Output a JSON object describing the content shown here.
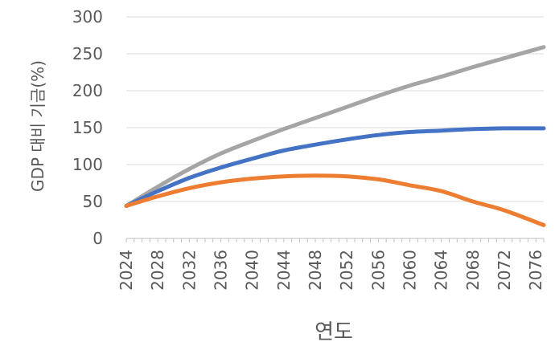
{
  "chart_data": {
    "type": "line",
    "title": "",
    "xlabel": "연도",
    "ylabel": "GDP 대비 기금(%)",
    "ylim": [
      0,
      300
    ],
    "yticks": [
      0,
      50,
      100,
      150,
      200,
      250,
      300
    ],
    "xlim": [
      2024,
      2077
    ],
    "xticks": [
      2024,
      2028,
      2032,
      2036,
      2040,
      2044,
      2048,
      2052,
      2056,
      2060,
      2064,
      2068,
      2072,
      2076
    ],
    "grid": "horizontal",
    "legend": "none",
    "series": [
      {
        "color": "#a5a5a5",
        "x": [
          2024,
          2028,
          2032,
          2036,
          2040,
          2044,
          2048,
          2052,
          2056,
          2060,
          2064,
          2068,
          2072,
          2077
        ],
        "values": [
          44,
          70,
          94,
          115,
          132,
          148,
          163,
          178,
          193,
          207,
          219,
          232,
          244,
          259
        ]
      },
      {
        "color": "#4472c4",
        "x": [
          2024,
          2028,
          2032,
          2036,
          2040,
          2044,
          2048,
          2052,
          2056,
          2060,
          2064,
          2068,
          2072,
          2077
        ],
        "values": [
          44,
          64,
          82,
          96,
          108,
          119,
          127,
          134,
          140,
          144,
          146,
          148,
          149,
          149
        ]
      },
      {
        "color": "#ed7d31",
        "x": [
          2024,
          2028,
          2032,
          2036,
          2040,
          2044,
          2048,
          2052,
          2056,
          2060,
          2064,
          2068,
          2072,
          2077
        ],
        "values": [
          44,
          57,
          68,
          76,
          81,
          84,
          85,
          84,
          80,
          72,
          64,
          50,
          38,
          18
        ]
      }
    ]
  }
}
